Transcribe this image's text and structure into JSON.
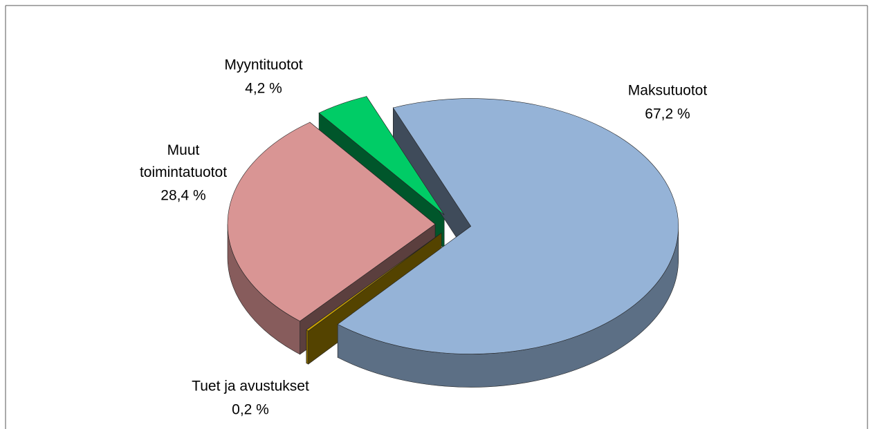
{
  "chart_data": {
    "type": "pie3d",
    "categories": [
      "Maksutuotot",
      "Tuet ja avustukset",
      "Muut toimintatuotot",
      "Myyntituotot"
    ],
    "values": [
      67.2,
      0.2,
      28.4,
      4.2
    ],
    "value_labels": [
      "67,2 %",
      "0,2 %",
      "28,4 %",
      "4,2 %"
    ],
    "colors": [
      "#95b3d7",
      "#c9a000",
      "#d99594",
      "#00cc66"
    ],
    "legend": false
  }
}
